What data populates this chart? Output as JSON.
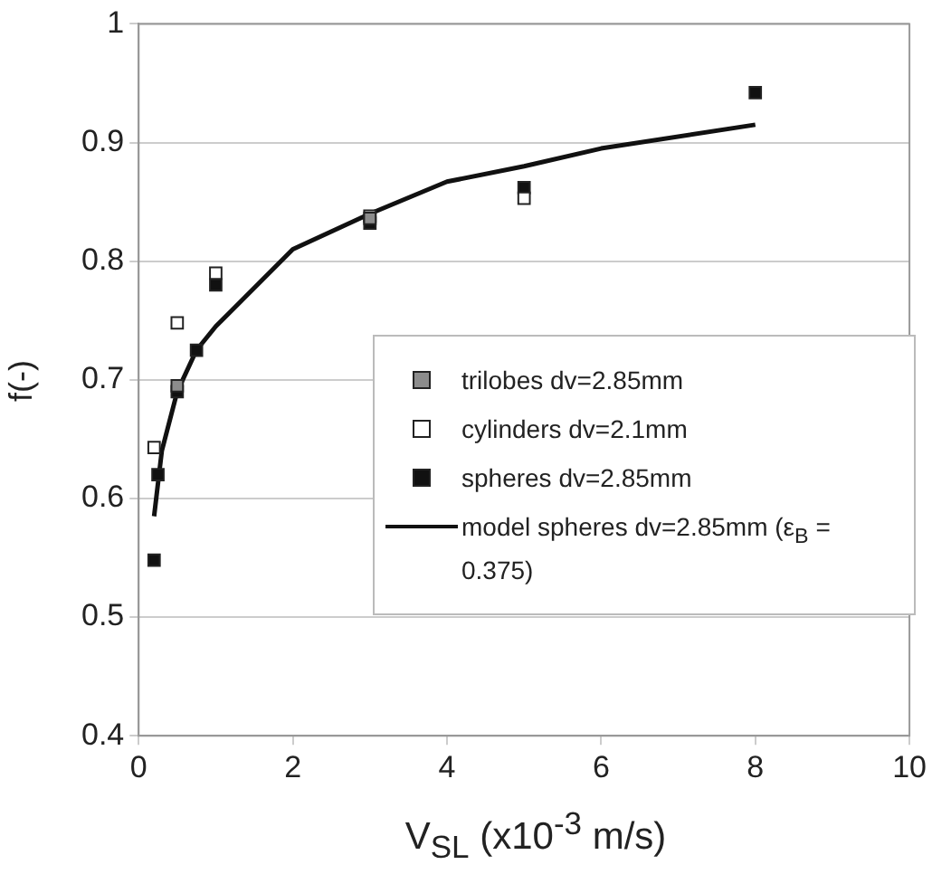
{
  "chart_data": {
    "type": "scatter",
    "xlabel": "V$_{SL}$ (x10$^{-3}$ m/s)",
    "ylabel": "f(-)",
    "xlim": [
      0,
      10
    ],
    "xticks": [
      0,
      2,
      4,
      6,
      8,
      10
    ],
    "ylim": [
      0.4,
      1
    ],
    "yticks": [
      0.4,
      0.5,
      0.6,
      0.7,
      0.8,
      0.9,
      1
    ],
    "grid": "y",
    "legend": "right",
    "marker": "square",
    "series": [
      {
        "name": "trilobes dv=2.85mm",
        "color": "#8c8c8c",
        "x": [
          0.5,
          3
        ],
        "values": [
          0.695,
          0.836
        ]
      },
      {
        "name": "cylinders dv=2.1mm",
        "color": "#ffffff",
        "x": [
          0.2,
          0.5,
          1,
          3,
          5
        ],
        "values": [
          0.643,
          0.748,
          0.79,
          0.838,
          0.853
        ]
      },
      {
        "name": "spheres dv=2.85mm",
        "color": "#111111",
        "x": [
          0.2,
          0.25,
          0.5,
          0.75,
          1,
          3,
          5,
          8
        ],
        "values": [
          0.548,
          0.62,
          0.69,
          0.725,
          0.78,
          0.832,
          0.862,
          0.942
        ]
      },
      {
        "name": "model spheres dv=2.85mm (ε$_{B}$ = 0.375)",
        "type": "line",
        "color": "#111111",
        "line_style": "solid",
        "marker": "none",
        "x": [
          0.2,
          0.3,
          0.5,
          0.75,
          1,
          2,
          3,
          4,
          5,
          6,
          8
        ],
        "values": [
          0.585,
          0.64,
          0.69,
          0.725,
          0.745,
          0.81,
          0.84,
          0.867,
          0.88,
          0.895,
          0.915
        ]
      }
    ]
  }
}
